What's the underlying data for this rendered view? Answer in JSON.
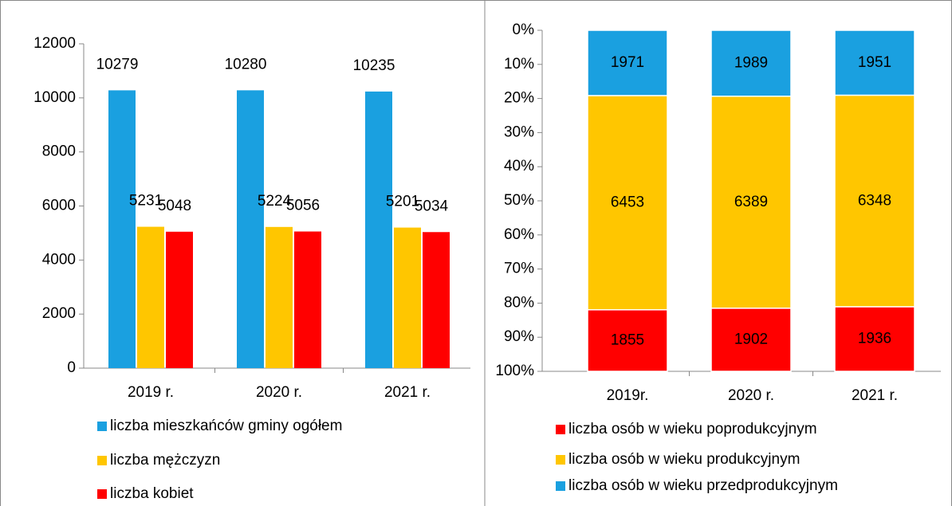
{
  "chart_data": [
    {
      "type": "bar",
      "categories": [
        "2019 r.",
        "2020 r.",
        "2021 r."
      ],
      "series": [
        {
          "name": "liczba mieszkańców gminy ogółem",
          "color": "#1aa0e0",
          "values": [
            10279,
            10280,
            10235
          ]
        },
        {
          "name": "liczba mężczyzn",
          "color": "#ffc600",
          "values": [
            5231,
            5224,
            5201
          ]
        },
        {
          "name": "liczba kobiet",
          "color": "#ff0000",
          "values": [
            5048,
            5056,
            5034
          ]
        }
      ],
      "ylim": [
        0,
        12000
      ],
      "yticks": [
        0,
        2000,
        4000,
        6000,
        8000,
        10000,
        12000
      ],
      "grid": false
    },
    {
      "type": "bar",
      "stacked": "percent",
      "y_inverted": true,
      "categories": [
        "2019r.",
        "2020 r.",
        "2021 r."
      ],
      "series": [
        {
          "name": "liczba osób w wieku przedprodukcyjnym",
          "color": "#1aa0e0",
          "values": [
            1971,
            1989,
            1951
          ]
        },
        {
          "name": "liczba osób w wieku produkcyjnym",
          "color": "#ffc600",
          "values": [
            6453,
            6389,
            6348
          ]
        },
        {
          "name": "liczba osób w wieku poprodukcyjnym",
          "color": "#ff0000",
          "values": [
            1855,
            1902,
            1936
          ]
        }
      ],
      "ylim": [
        0,
        100
      ],
      "yticks": [
        {
          "value": 0,
          "label": "0%"
        },
        {
          "value": 10,
          "label": "10%"
        },
        {
          "value": 20,
          "label": "20%"
        },
        {
          "value": 30,
          "label": "30%"
        },
        {
          "value": 40,
          "label": "40%"
        },
        {
          "value": 50,
          "label": "50%"
        },
        {
          "value": 60,
          "label": "60%"
        },
        {
          "value": 70,
          "label": "70%"
        },
        {
          "value": 80,
          "label": "80%"
        },
        {
          "value": 90,
          "label": "90%"
        },
        {
          "value": 100,
          "label": "100%"
        }
      ],
      "grid": false
    }
  ]
}
